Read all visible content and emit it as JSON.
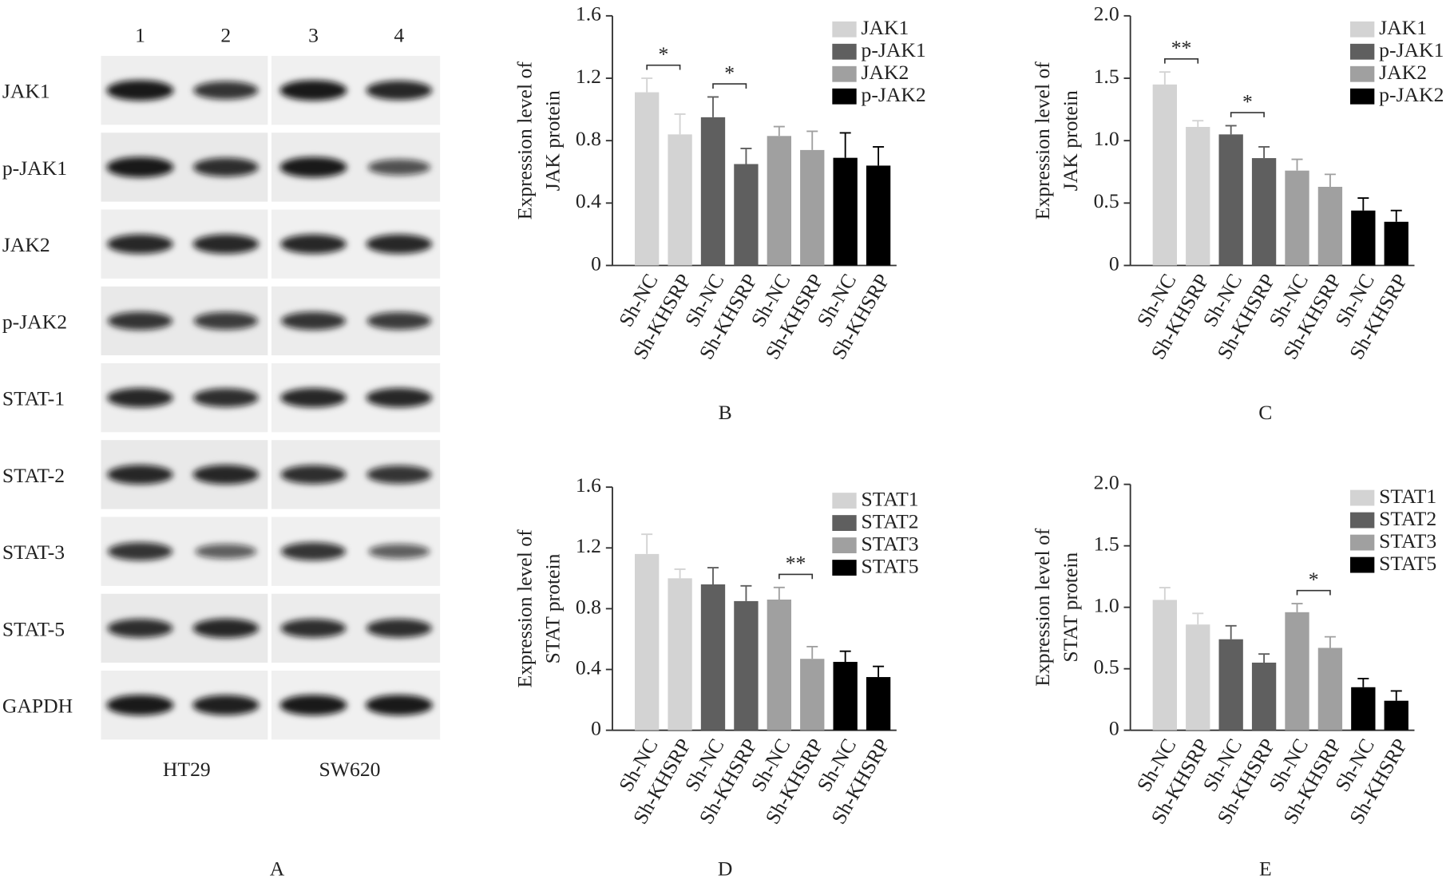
{
  "blot": {
    "lanes": [
      "1",
      "2",
      "3",
      "4"
    ],
    "rows": [
      "JAK1",
      "p-JAK1",
      "JAK2",
      "p-JAK2",
      "STAT-1",
      "STAT-2",
      "STAT-3",
      "STAT-5",
      "GAPDH"
    ],
    "cell_lines": [
      "HT29",
      "SW620"
    ],
    "caption": "A"
  },
  "chart_data": [
    {
      "type": "bar",
      "caption": "B",
      "ylabel": [
        "Expression level of",
        "JAK protein"
      ],
      "categories": [
        "Sh-NC",
        "Sh-KHSRP",
        "Sh-NC",
        "Sh-KHSRP",
        "Sh-NC",
        "Sh-KHSRP",
        "Sh-NC",
        "Sh-KHSRP"
      ],
      "series": [
        {
          "name": "JAK1",
          "color": "#d3d3d3",
          "values": [
            1.11,
            0.84,
            null,
            null,
            null,
            null,
            null,
            null
          ],
          "errors": [
            0.09,
            0.13,
            null,
            null,
            null,
            null,
            null,
            null
          ]
        },
        {
          "name": "p-JAK1",
          "color": "#5f5f5f",
          "values": [
            null,
            null,
            0.95,
            0.65,
            null,
            null,
            null,
            null
          ],
          "errors": [
            null,
            null,
            0.13,
            0.1,
            null,
            null,
            null,
            null
          ]
        },
        {
          "name": "JAK2",
          "color": "#a0a0a0",
          "values": [
            null,
            null,
            null,
            null,
            0.83,
            0.74,
            null,
            null
          ],
          "errors": [
            null,
            null,
            null,
            null,
            0.06,
            0.12,
            null,
            null
          ]
        },
        {
          "name": "p-JAK2",
          "color": "#000000",
          "values": [
            null,
            null,
            null,
            null,
            null,
            null,
            0.69,
            0.64
          ],
          "errors": [
            null,
            null,
            null,
            null,
            null,
            null,
            0.16,
            0.12
          ]
        }
      ],
      "annotations": [
        {
          "label": "*",
          "between": [
            0,
            1
          ]
        },
        {
          "label": "*",
          "between": [
            2,
            3
          ]
        }
      ],
      "ylim": [
        0,
        1.6
      ],
      "yticks": [
        0,
        0.4,
        0.8,
        1.2,
        1.6
      ],
      "legend": "upper right"
    },
    {
      "type": "bar",
      "caption": "C",
      "ylabel": [
        "Expression level of",
        "JAK protein"
      ],
      "categories": [
        "Sh-NC",
        "Sh-KHSRP",
        "Sh-NC",
        "Sh-KHSRP",
        "Sh-NC",
        "Sh-KHSRP",
        "Sh-NC",
        "Sh-KHSRP"
      ],
      "series": [
        {
          "name": "JAK1",
          "color": "#d3d3d3",
          "values": [
            1.45,
            1.11,
            null,
            null,
            null,
            null,
            null,
            null
          ],
          "errors": [
            0.1,
            0.05,
            null,
            null,
            null,
            null,
            null,
            null
          ]
        },
        {
          "name": "p-JAK1",
          "color": "#5f5f5f",
          "values": [
            null,
            null,
            1.05,
            0.86,
            null,
            null,
            null,
            null
          ],
          "errors": [
            null,
            null,
            0.07,
            0.09,
            null,
            null,
            null,
            null
          ]
        },
        {
          "name": "JAK2",
          "color": "#a0a0a0",
          "values": [
            null,
            null,
            null,
            null,
            0.76,
            0.63,
            null,
            null
          ],
          "errors": [
            null,
            null,
            null,
            null,
            0.09,
            0.1,
            null,
            null
          ]
        },
        {
          "name": "p-JAK2",
          "color": "#000000",
          "values": [
            null,
            null,
            null,
            null,
            null,
            null,
            0.44,
            0.35
          ],
          "errors": [
            null,
            null,
            null,
            null,
            null,
            null,
            0.1,
            0.09
          ]
        }
      ],
      "annotations": [
        {
          "label": "**",
          "between": [
            0,
            1
          ]
        },
        {
          "label": "*",
          "between": [
            2,
            3
          ]
        }
      ],
      "ylim": [
        0,
        2
      ],
      "yticks": [
        0,
        0.5,
        {
          "value": 1,
          "label": "1.0"
        },
        1.5,
        {
          "value": 2,
          "label": "2.0"
        }
      ],
      "legend": "upper right"
    },
    {
      "type": "bar",
      "caption": "D",
      "ylabel": [
        "Expression level of",
        "STAT protein"
      ],
      "categories": [
        "Sh-NC",
        "Sh-KHSRP",
        "Sh-NC",
        "Sh-KHSRP",
        "Sh-NC",
        "Sh-KHSRP",
        "Sh-NC",
        "Sh-KHSRP"
      ],
      "series": [
        {
          "name": "STAT1",
          "color": "#d3d3d3",
          "values": [
            1.16,
            1.0,
            null,
            null,
            null,
            null,
            null,
            null
          ],
          "errors": [
            0.13,
            0.06,
            null,
            null,
            null,
            null,
            null,
            null
          ]
        },
        {
          "name": "STAT2",
          "color": "#5f5f5f",
          "values": [
            null,
            null,
            0.96,
            0.85,
            null,
            null,
            null,
            null
          ],
          "errors": [
            null,
            null,
            0.11,
            0.1,
            null,
            null,
            null,
            null
          ]
        },
        {
          "name": "STAT3",
          "color": "#a0a0a0",
          "values": [
            null,
            null,
            null,
            null,
            0.86,
            0.47,
            null,
            null
          ],
          "errors": [
            null,
            null,
            null,
            null,
            0.08,
            0.08,
            null,
            null
          ]
        },
        {
          "name": "STAT5",
          "color": "#000000",
          "values": [
            null,
            null,
            null,
            null,
            null,
            null,
            0.45,
            0.35
          ],
          "errors": [
            null,
            null,
            null,
            null,
            null,
            null,
            0.07,
            0.07
          ]
        }
      ],
      "annotations": [
        {
          "label": "**",
          "between": [
            4,
            5
          ]
        }
      ],
      "ylim": [
        0,
        1.6
      ],
      "yticks": [
        0,
        0.4,
        0.8,
        1.2,
        1.6
      ],
      "legend": "upper right"
    },
    {
      "type": "bar",
      "caption": "E",
      "ylabel": [
        "Expression level of",
        "STAT protein"
      ],
      "categories": [
        "Sh-NC",
        "Sh-KHSRP",
        "Sh-NC",
        "Sh-KHSRP",
        "Sh-NC",
        "Sh-KHSRP",
        "Sh-NC",
        "Sh-KHSRP"
      ],
      "series": [
        {
          "name": "STAT1",
          "color": "#d3d3d3",
          "values": [
            1.06,
            0.86,
            null,
            null,
            null,
            null,
            null,
            null
          ],
          "errors": [
            0.1,
            0.09,
            null,
            null,
            null,
            null,
            null,
            null
          ]
        },
        {
          "name": "STAT2",
          "color": "#5f5f5f",
          "values": [
            null,
            null,
            0.74,
            0.55,
            null,
            null,
            null,
            null
          ],
          "errors": [
            null,
            null,
            0.11,
            0.07,
            null,
            null,
            null,
            null
          ]
        },
        {
          "name": "STAT3",
          "color": "#a0a0a0",
          "values": [
            null,
            null,
            null,
            null,
            0.96,
            0.67,
            null,
            null
          ],
          "errors": [
            null,
            null,
            null,
            null,
            0.07,
            0.09,
            null,
            null
          ]
        },
        {
          "name": "STAT5",
          "color": "#000000",
          "values": [
            null,
            null,
            null,
            null,
            null,
            null,
            0.35,
            0.24
          ],
          "errors": [
            null,
            null,
            null,
            null,
            null,
            null,
            0.07,
            0.08
          ]
        }
      ],
      "annotations": [
        {
          "label": "*",
          "between": [
            4,
            5
          ]
        }
      ],
      "ylim": [
        0,
        2
      ],
      "yticks": [
        0,
        0.5,
        {
          "value": 1,
          "label": "1.0"
        },
        1.5,
        {
          "value": 2,
          "label": "2.0"
        }
      ],
      "legend": "upper right"
    }
  ]
}
